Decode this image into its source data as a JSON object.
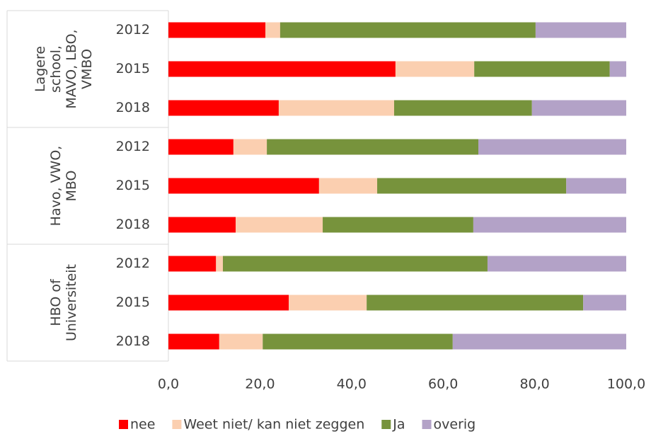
{
  "chart_data": {
    "type": "stacked-bar-horizontal",
    "groups": [
      {
        "label": [
          "Lagere",
          "school,",
          "MAVO, LBO,",
          "VMBO"
        ],
        "categories": [
          "2012",
          "2015",
          "2018"
        ]
      },
      {
        "label": [
          "Havo, VWO,",
          "MBO"
        ],
        "categories": [
          "2012",
          "2015",
          "2018"
        ]
      },
      {
        "label": [
          "HBO of",
          "Universiteit"
        ],
        "categories": [
          "2012",
          "2015",
          "2018"
        ]
      }
    ],
    "series": [
      {
        "name": "nee",
        "color": "#ff0000",
        "values": [
          21.2,
          49.6,
          24.1,
          14.2,
          32.9,
          14.7,
          10.4,
          26.3,
          11.1
        ]
      },
      {
        "name": "Weet niet/ kan niet zeggen",
        "color": "#fbcfb0",
        "values": [
          3.2,
          17.2,
          25.2,
          7.3,
          12.7,
          19.0,
          1.5,
          17.0,
          9.5
        ]
      },
      {
        "name": "Ja",
        "color": "#77933c",
        "values": [
          55.8,
          29.6,
          30.1,
          46.2,
          41.3,
          32.9,
          57.8,
          47.3,
          41.5
        ]
      },
      {
        "name": "overig",
        "color": "#b3a2c7",
        "values": [
          19.8,
          3.6,
          20.6,
          32.3,
          13.1,
          33.4,
          30.3,
          9.4,
          37.9
        ]
      }
    ],
    "xlim": [
      0,
      100
    ],
    "xticks": [
      {
        "value": 0,
        "label": "0,0"
      },
      {
        "value": 20,
        "label": "20,0"
      },
      {
        "value": 40,
        "label": "40,0"
      },
      {
        "value": 60,
        "label": "60,0"
      },
      {
        "value": 80,
        "label": "80,0"
      },
      {
        "value": 100,
        "label": "100,0"
      }
    ],
    "legend": "bottom"
  }
}
